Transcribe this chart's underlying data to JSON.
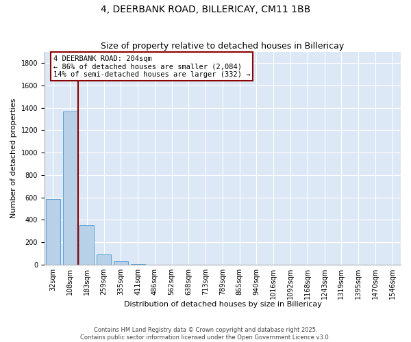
{
  "title1": "4, DEERBANK ROAD, BILLERICAY, CM11 1BB",
  "title2": "Size of property relative to detached houses in Billericay",
  "xlabel": "Distribution of detached houses by size in Billericay",
  "ylabel": "Number of detached properties",
  "categories": [
    "32sqm",
    "108sqm",
    "183sqm",
    "259sqm",
    "335sqm",
    "411sqm",
    "486sqm",
    "562sqm",
    "638sqm",
    "713sqm",
    "789sqm",
    "865sqm",
    "940sqm",
    "1016sqm",
    "1092sqm",
    "1168sqm",
    "1243sqm",
    "1319sqm",
    "1395sqm",
    "1470sqm",
    "1546sqm"
  ],
  "values": [
    583,
    1370,
    352,
    93,
    30,
    5,
    2,
    1,
    0,
    0,
    0,
    0,
    0,
    0,
    0,
    0,
    0,
    0,
    0,
    0,
    0
  ],
  "bar_color": "#b8d0e8",
  "bar_edge_color": "#5a9fd4",
  "background_color": "#dce8f5",
  "vline_color": "#8b0000",
  "annotation_text": "4 DEERBANK ROAD: 204sqm\n← 86% of detached houses are smaller (2,084)\n14% of semi-detached houses are larger (332) →",
  "ylim": [
    0,
    1900
  ],
  "yticks": [
    0,
    200,
    400,
    600,
    800,
    1000,
    1200,
    1400,
    1600,
    1800
  ],
  "footnote": "Contains HM Land Registry data © Crown copyright and database right 2025.\nContains public sector information licensed under the Open Government Licence v3.0.",
  "title_fontsize": 10,
  "subtitle_fontsize": 9,
  "tick_fontsize": 7,
  "ylabel_fontsize": 8,
  "xlabel_fontsize": 8,
  "annot_fontsize": 7.5,
  "footnote_fontsize": 6
}
